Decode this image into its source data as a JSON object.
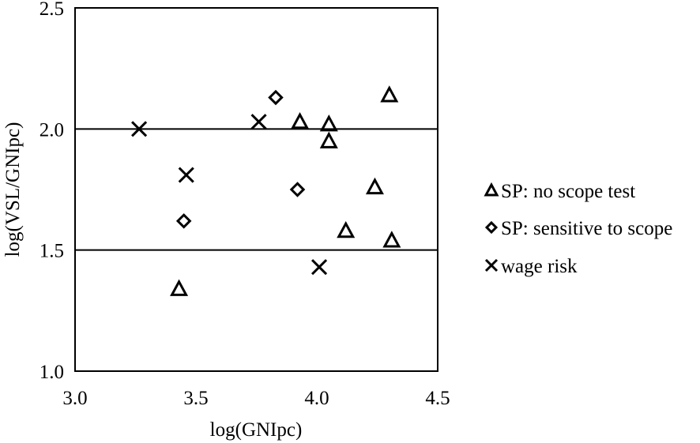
{
  "chart_data": {
    "type": "scatter",
    "title": "",
    "xlabel": "log(GNIpc)",
    "ylabel": "log(VSL/GNIpc)",
    "xlim": [
      3.0,
      4.5
    ],
    "ylim": [
      1.0,
      2.5
    ],
    "xticks": [
      "3.0",
      "3.5",
      "4.0",
      "4.5"
    ],
    "yticks": [
      "1.0",
      "1.5",
      "2.0",
      "2.5"
    ],
    "grid": false,
    "reference_lines_y": [
      1.5,
      2.0
    ],
    "legend_position": "right",
    "series": [
      {
        "name": "SP: no scope test",
        "marker": "triangle",
        "points": [
          {
            "x": 3.43,
            "y": 1.34
          },
          {
            "x": 3.93,
            "y": 2.03
          },
          {
            "x": 4.05,
            "y": 2.02
          },
          {
            "x": 4.05,
            "y": 1.95
          },
          {
            "x": 4.3,
            "y": 2.14
          },
          {
            "x": 4.24,
            "y": 1.76
          },
          {
            "x": 4.12,
            "y": 1.58
          },
          {
            "x": 4.31,
            "y": 1.54
          }
        ]
      },
      {
        "name": "SP: sensitive to scope",
        "marker": "diamond",
        "points": [
          {
            "x": 3.83,
            "y": 2.13
          },
          {
            "x": 3.45,
            "y": 1.62
          },
          {
            "x": 3.92,
            "y": 1.75
          }
        ]
      },
      {
        "name": "wage risk",
        "marker": "x",
        "points": [
          {
            "x": 3.265,
            "y": 2.0
          },
          {
            "x": 3.46,
            "y": 1.81
          },
          {
            "x": 3.76,
            "y": 2.03
          },
          {
            "x": 4.01,
            "y": 1.43
          }
        ]
      }
    ]
  }
}
